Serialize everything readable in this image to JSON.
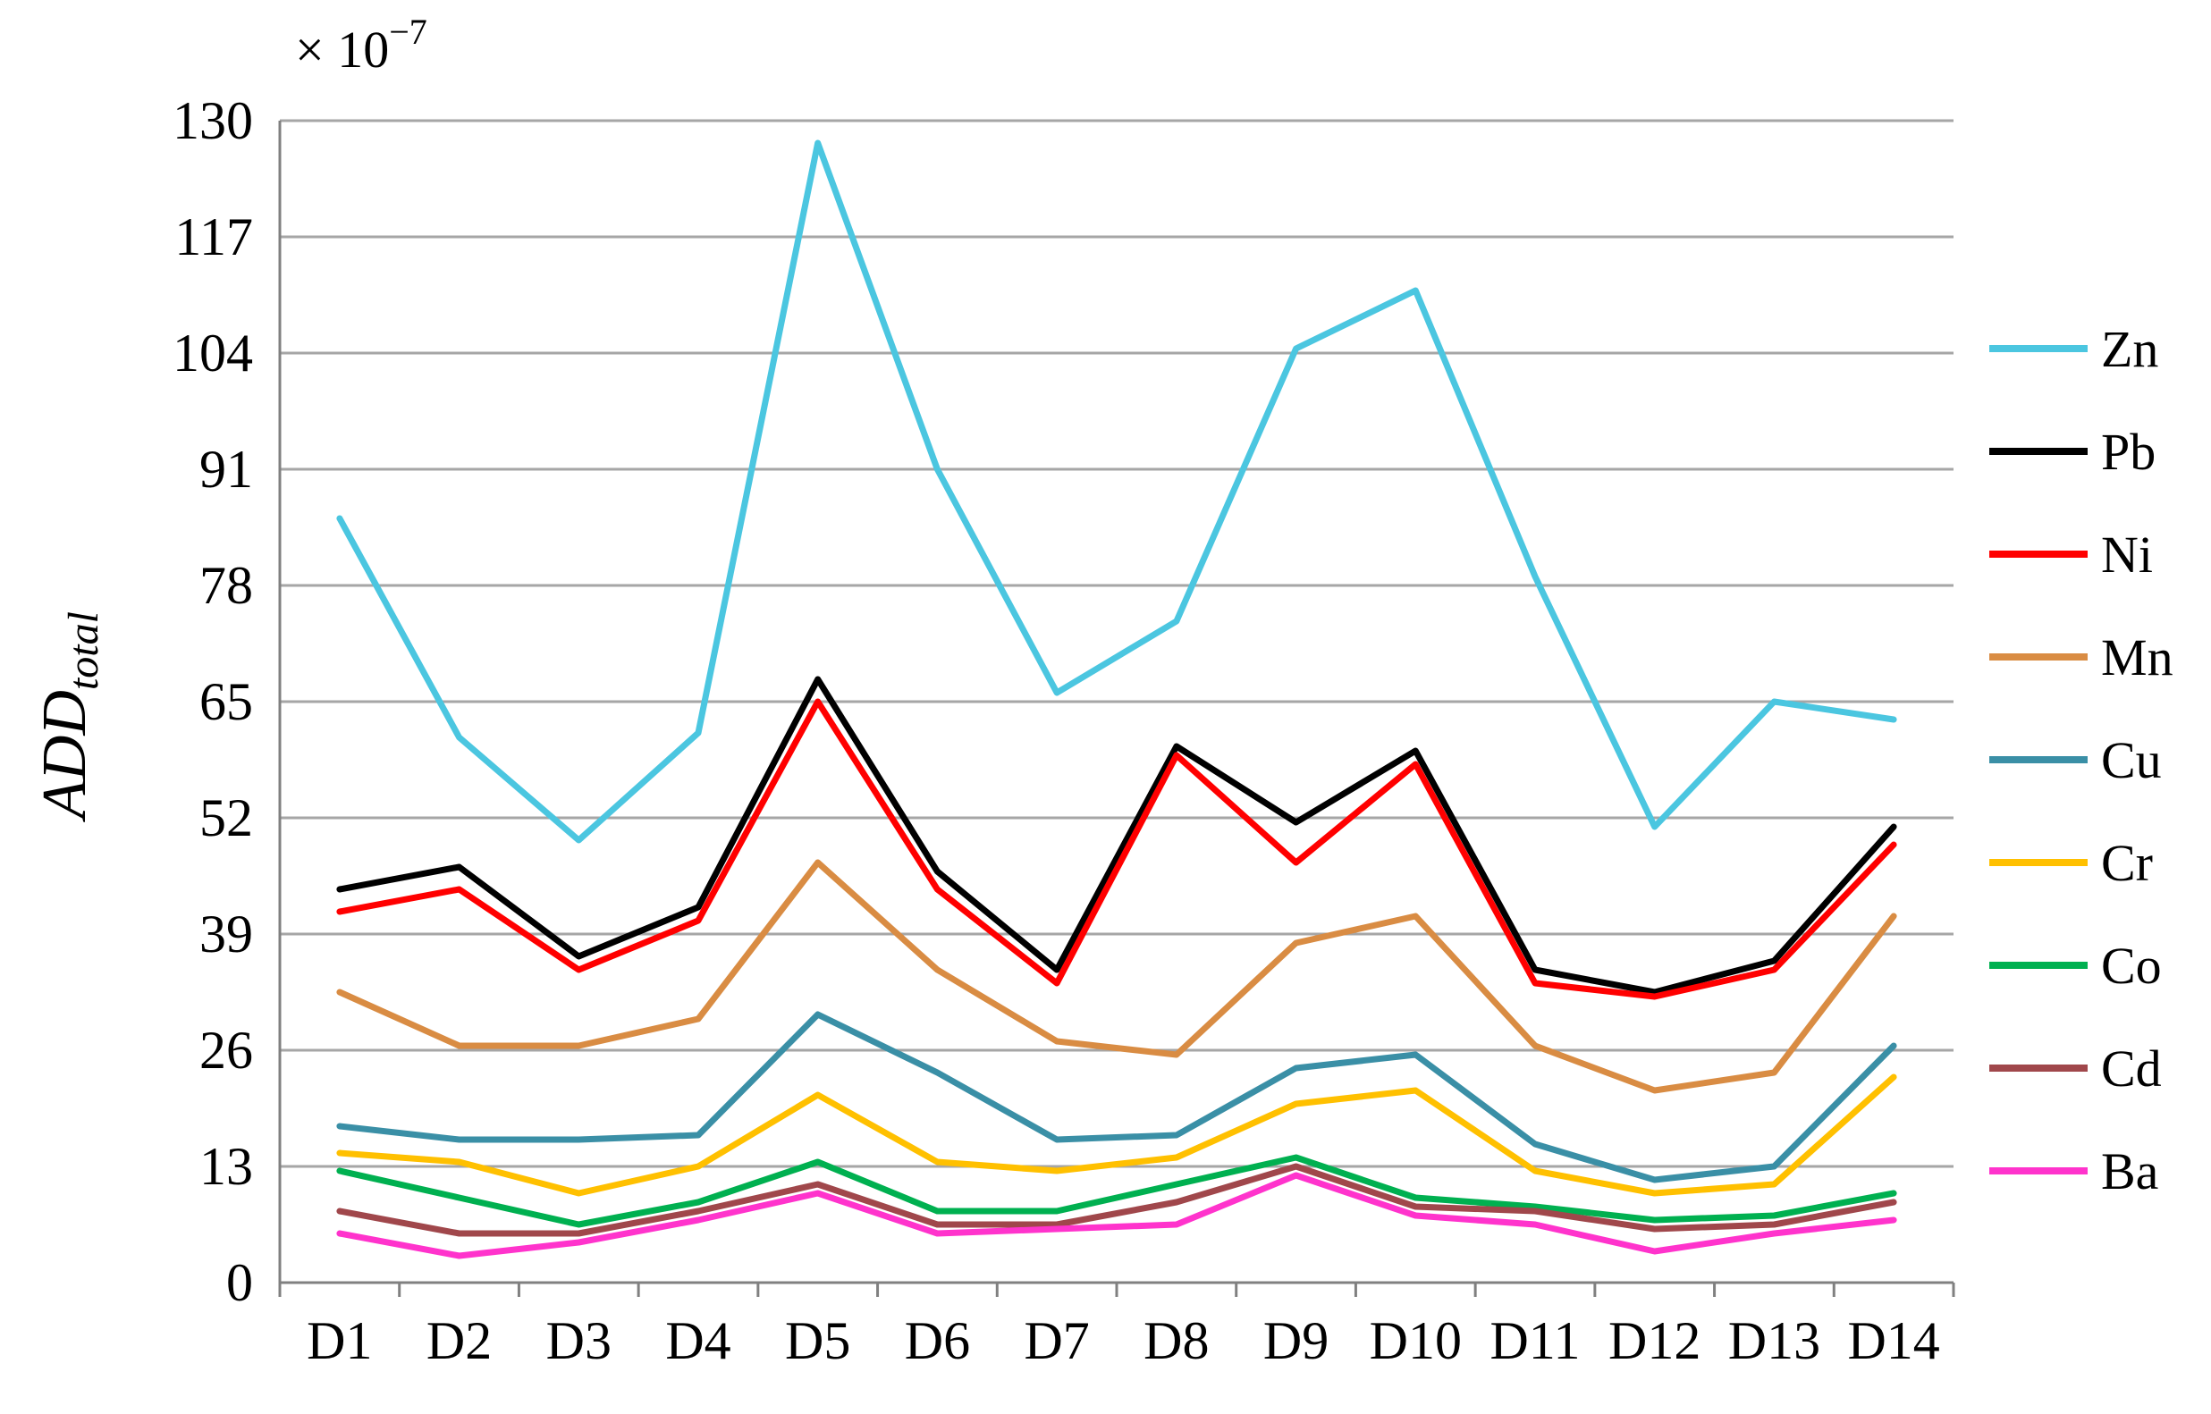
{
  "chart_data": {
    "type": "line",
    "title": "",
    "xlabel": "",
    "ylabel_main": "ADD",
    "ylabel_sub": "total",
    "multiplier_base": "× 10",
    "multiplier_exp": "−7",
    "ylim": [
      0,
      130
    ],
    "yticks": [
      0,
      13,
      26,
      39,
      52,
      65,
      78,
      91,
      104,
      117,
      130
    ],
    "ytick_labels": [
      "0",
      "13",
      "26",
      "39",
      "52",
      "65",
      "78",
      "91",
      "104",
      "117",
      "130"
    ],
    "grid": true,
    "legend_position": "right",
    "categories": [
      "D1",
      "D2",
      "D3",
      "D4",
      "D5",
      "D6",
      "D7",
      "D8",
      "D9",
      "D10",
      "D11",
      "D12",
      "D13",
      "D14"
    ],
    "series": [
      {
        "name": "Zn",
        "color": "#4BC6E0",
        "values": [
          85.5,
          61,
          49.5,
          61.5,
          127.5,
          91,
          66,
          74,
          104.5,
          111,
          79,
          51,
          65,
          63
        ]
      },
      {
        "name": "Pb",
        "color": "#000000",
        "values": [
          44,
          46.5,
          36.5,
          42,
          67.5,
          46,
          35,
          60,
          51.5,
          59.5,
          35,
          32.5,
          36,
          51
        ]
      },
      {
        "name": "Ni",
        "color": "#FF0000",
        "values": [
          41.5,
          44,
          35,
          40.5,
          65,
          44,
          33.5,
          59,
          47,
          58,
          33.5,
          32,
          35,
          49
        ]
      },
      {
        "name": "Mn",
        "color": "#D98C43",
        "values": [
          32.5,
          26.5,
          26.5,
          29.5,
          47,
          35,
          27,
          25.5,
          38,
          41,
          26.5,
          21.5,
          23.5,
          41
        ]
      },
      {
        "name": "Cu",
        "color": "#3A8FA6",
        "values": [
          17.5,
          16,
          16,
          16.5,
          30,
          23.5,
          16,
          16.5,
          24,
          25.5,
          15.5,
          11.5,
          13,
          26.5
        ]
      },
      {
        "name": "Cr",
        "color": "#FFC000",
        "values": [
          14.5,
          13.5,
          10,
          13,
          21,
          13.5,
          12.5,
          14,
          20,
          21.5,
          12.5,
          10,
          11,
          23
        ]
      },
      {
        "name": "Co",
        "color": "#00B050",
        "values": [
          12.5,
          9.5,
          6.5,
          9,
          13.5,
          8,
          8,
          11,
          14,
          9.5,
          8.5,
          7,
          7.5,
          10
        ]
      },
      {
        "name": "Cd",
        "color": "#A0474B",
        "values": [
          8,
          5.5,
          5.5,
          8,
          11,
          6.5,
          6.5,
          9,
          13,
          8.5,
          8,
          6,
          6.5,
          9
        ]
      },
      {
        "name": "Ba",
        "color": "#FF33CC",
        "values": [
          5.5,
          3,
          4.5,
          7,
          10,
          5.5,
          6,
          6.5,
          12,
          7.5,
          6.5,
          3.5,
          5.5,
          7
        ]
      }
    ]
  },
  "colors": {
    "grid": "#A6A6A6",
    "axis": "#808080"
  }
}
